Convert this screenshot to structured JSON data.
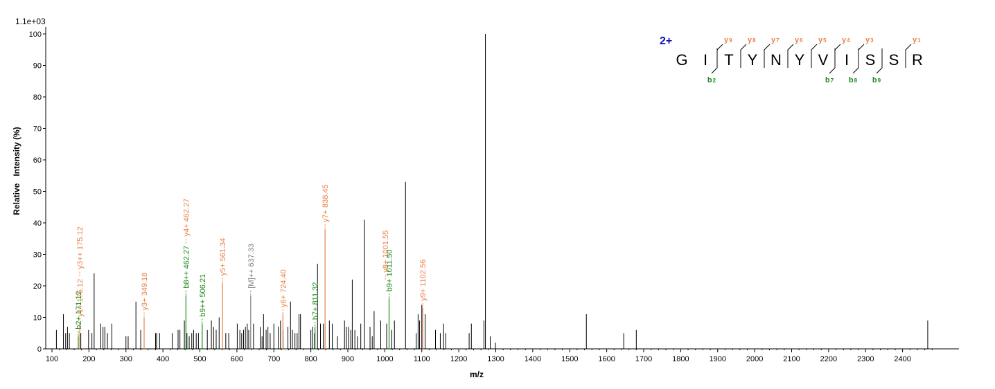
{
  "chart_data": {
    "type": "bar",
    "scale_label": "1.1e+03",
    "xlabel": "m/z",
    "ylabel": "Relative   Intensity (%)",
    "xlim": [
      95,
      2485
    ],
    "ylim": [
      0,
      100
    ],
    "x_ticks": [
      100,
      200,
      300,
      400,
      500,
      600,
      700,
      800,
      900,
      1000,
      1100,
      1200,
      1300,
      1400,
      1500,
      1600,
      1700,
      1800,
      1900,
      2000,
      2100,
      2200,
      2300,
      2400
    ],
    "y_ticks": [
      0,
      10,
      20,
      30,
      40,
      50,
      60,
      70,
      80,
      90,
      100
    ],
    "colors": {
      "peak": "#000000",
      "y_ion": "#e8824a",
      "b_ion": "#1a8a1a",
      "precursor": "#808080",
      "charge": "#1010c0"
    },
    "peaks": [
      [
        112,
        6
      ],
      [
        131,
        11
      ],
      [
        137,
        5
      ],
      [
        142,
        7
      ],
      [
        147,
        5
      ],
      [
        178,
        5
      ],
      [
        199,
        6
      ],
      [
        208,
        5
      ],
      [
        214,
        24
      ],
      [
        232,
        8
      ],
      [
        238,
        7
      ],
      [
        243,
        7
      ],
      [
        250,
        5
      ],
      [
        262,
        8
      ],
      [
        300,
        4
      ],
      [
        306,
        4
      ],
      [
        327,
        15
      ],
      [
        340,
        6
      ],
      [
        380,
        5
      ],
      [
        383,
        5
      ],
      [
        391,
        5
      ],
      [
        425,
        5
      ],
      [
        441,
        6
      ],
      [
        446,
        6
      ],
      [
        458,
        9
      ],
      [
        465,
        5
      ],
      [
        471,
        4
      ],
      [
        478,
        5
      ],
      [
        483,
        6
      ],
      [
        490,
        5
      ],
      [
        496,
        5
      ],
      [
        520,
        6
      ],
      [
        531,
        9
      ],
      [
        537,
        7
      ],
      [
        544,
        6
      ],
      [
        552,
        10
      ],
      [
        570,
        5
      ],
      [
        578,
        5
      ],
      [
        601,
        8
      ],
      [
        608,
        6
      ],
      [
        613,
        5
      ],
      [
        618,
        6
      ],
      [
        623,
        7
      ],
      [
        628,
        8
      ],
      [
        632,
        6
      ],
      [
        645,
        8
      ],
      [
        663,
        7
      ],
      [
        668,
        4
      ],
      [
        672,
        11
      ],
      [
        679,
        6
      ],
      [
        684,
        7
      ],
      [
        690,
        5
      ],
      [
        700,
        8
      ],
      [
        712,
        7
      ],
      [
        718,
        9
      ],
      [
        725,
        6
      ],
      [
        738,
        7
      ],
      [
        745,
        15
      ],
      [
        750,
        6
      ],
      [
        757,
        5
      ],
      [
        763,
        5
      ],
      [
        768,
        11
      ],
      [
        772,
        11
      ],
      [
        800,
        6
      ],
      [
        805,
        7
      ],
      [
        810,
        5
      ],
      [
        818,
        27
      ],
      [
        826,
        8
      ],
      [
        834,
        8
      ],
      [
        850,
        9
      ],
      [
        858,
        8
      ],
      [
        872,
        4
      ],
      [
        891,
        9
      ],
      [
        896,
        7
      ],
      [
        902,
        7
      ],
      [
        908,
        6
      ],
      [
        912,
        22
      ],
      [
        919,
        6
      ],
      [
        926,
        4
      ],
      [
        935,
        8
      ],
      [
        945,
        41
      ],
      [
        960,
        7
      ],
      [
        966,
        4
      ],
      [
        971,
        12
      ],
      [
        989,
        9
      ],
      [
        1005,
        8
      ],
      [
        1019,
        6
      ],
      [
        1026,
        9
      ],
      [
        1056,
        53
      ],
      [
        1085,
        5
      ],
      [
        1090,
        11
      ],
      [
        1094,
        9
      ],
      [
        1100,
        14
      ],
      [
        1109,
        11
      ],
      [
        1137,
        6
      ],
      [
        1150,
        5
      ],
      [
        1159,
        8
      ],
      [
        1165,
        5
      ],
      [
        1228,
        5
      ],
      [
        1234,
        8
      ],
      [
        1268,
        9
      ],
      [
        1272,
        100
      ],
      [
        1285,
        4
      ],
      [
        1299,
        2
      ],
      [
        1545,
        11
      ],
      [
        1646,
        5
      ],
      [
        1680,
        6
      ],
      [
        2468,
        9
      ]
    ],
    "annotated_peaks": [
      {
        "mz": 171.12,
        "intensity": 4,
        "type": "b",
        "label": "b2+ 171.12"
      },
      {
        "mz": 175.12,
        "intensity": 8,
        "type": "y",
        "label": "y1+ 175.12"
      },
      {
        "mz": 175.12,
        "intensity": 8,
        "type": "y",
        "label": "y3++ 175.12",
        "stack": 1
      },
      {
        "mz": 349.18,
        "intensity": 10,
        "type": "y",
        "label": "y3+ 349.18"
      },
      {
        "mz": 462.27,
        "intensity": 17,
        "type": "b",
        "label": "b8++ 462.27"
      },
      {
        "mz": 462.27,
        "intensity": 17,
        "type": "y",
        "label": "y4+ 462.27",
        "stack": 1
      },
      {
        "mz": 506.21,
        "intensity": 8,
        "type": "b",
        "label": "b9++ 506.21"
      },
      {
        "mz": 561.34,
        "intensity": 21,
        "type": "y",
        "label": "y5+ 561.34"
      },
      {
        "mz": 637.33,
        "intensity": 17,
        "type": "precursor",
        "label": "[M]++ 637.33"
      },
      {
        "mz": 724.4,
        "intensity": 11,
        "type": "y",
        "label": "y6+ 724.40"
      },
      {
        "mz": 811.32,
        "intensity": 7,
        "type": "b",
        "label": "b7+ 811.32"
      },
      {
        "mz": 838.45,
        "intensity": 38,
        "type": "y",
        "label": "y7+ 838.45"
      },
      {
        "mz": 1001.55,
        "intensity": 8,
        "type": "y",
        "label": "y8+ 1001.55",
        "stack": 1
      },
      {
        "mz": 1011.5,
        "intensity": 16,
        "type": "b",
        "label": "b9+ 1011.50"
      },
      {
        "mz": 1102.56,
        "intensity": 13,
        "type": "y",
        "label": "y9+ 1102.56"
      }
    ],
    "sequence": {
      "charge": "2+",
      "residues": [
        "G",
        "I",
        "T",
        "Y",
        "N",
        "Y",
        "V",
        "I",
        "S",
        "S",
        "R"
      ],
      "y_ions": [
        {
          "after": 2,
          "label": "y",
          "num": "9"
        },
        {
          "after": 3,
          "label": "y",
          "num": "8"
        },
        {
          "after": 4,
          "label": "y",
          "num": "7"
        },
        {
          "after": 5,
          "label": "y",
          "num": "6"
        },
        {
          "after": 6,
          "label": "y",
          "num": "5"
        },
        {
          "after": 7,
          "label": "y",
          "num": "4"
        },
        {
          "after": 8,
          "label": "y",
          "num": "3"
        },
        {
          "after": 10,
          "label": "y",
          "num": "1"
        }
      ],
      "b_ions": [
        {
          "after": 2,
          "label": "b",
          "num": "2"
        },
        {
          "after": 7,
          "label": "b",
          "num": "7"
        },
        {
          "after": 8,
          "label": "b",
          "num": "8"
        },
        {
          "after": 9,
          "label": "b",
          "num": "9"
        }
      ]
    }
  }
}
